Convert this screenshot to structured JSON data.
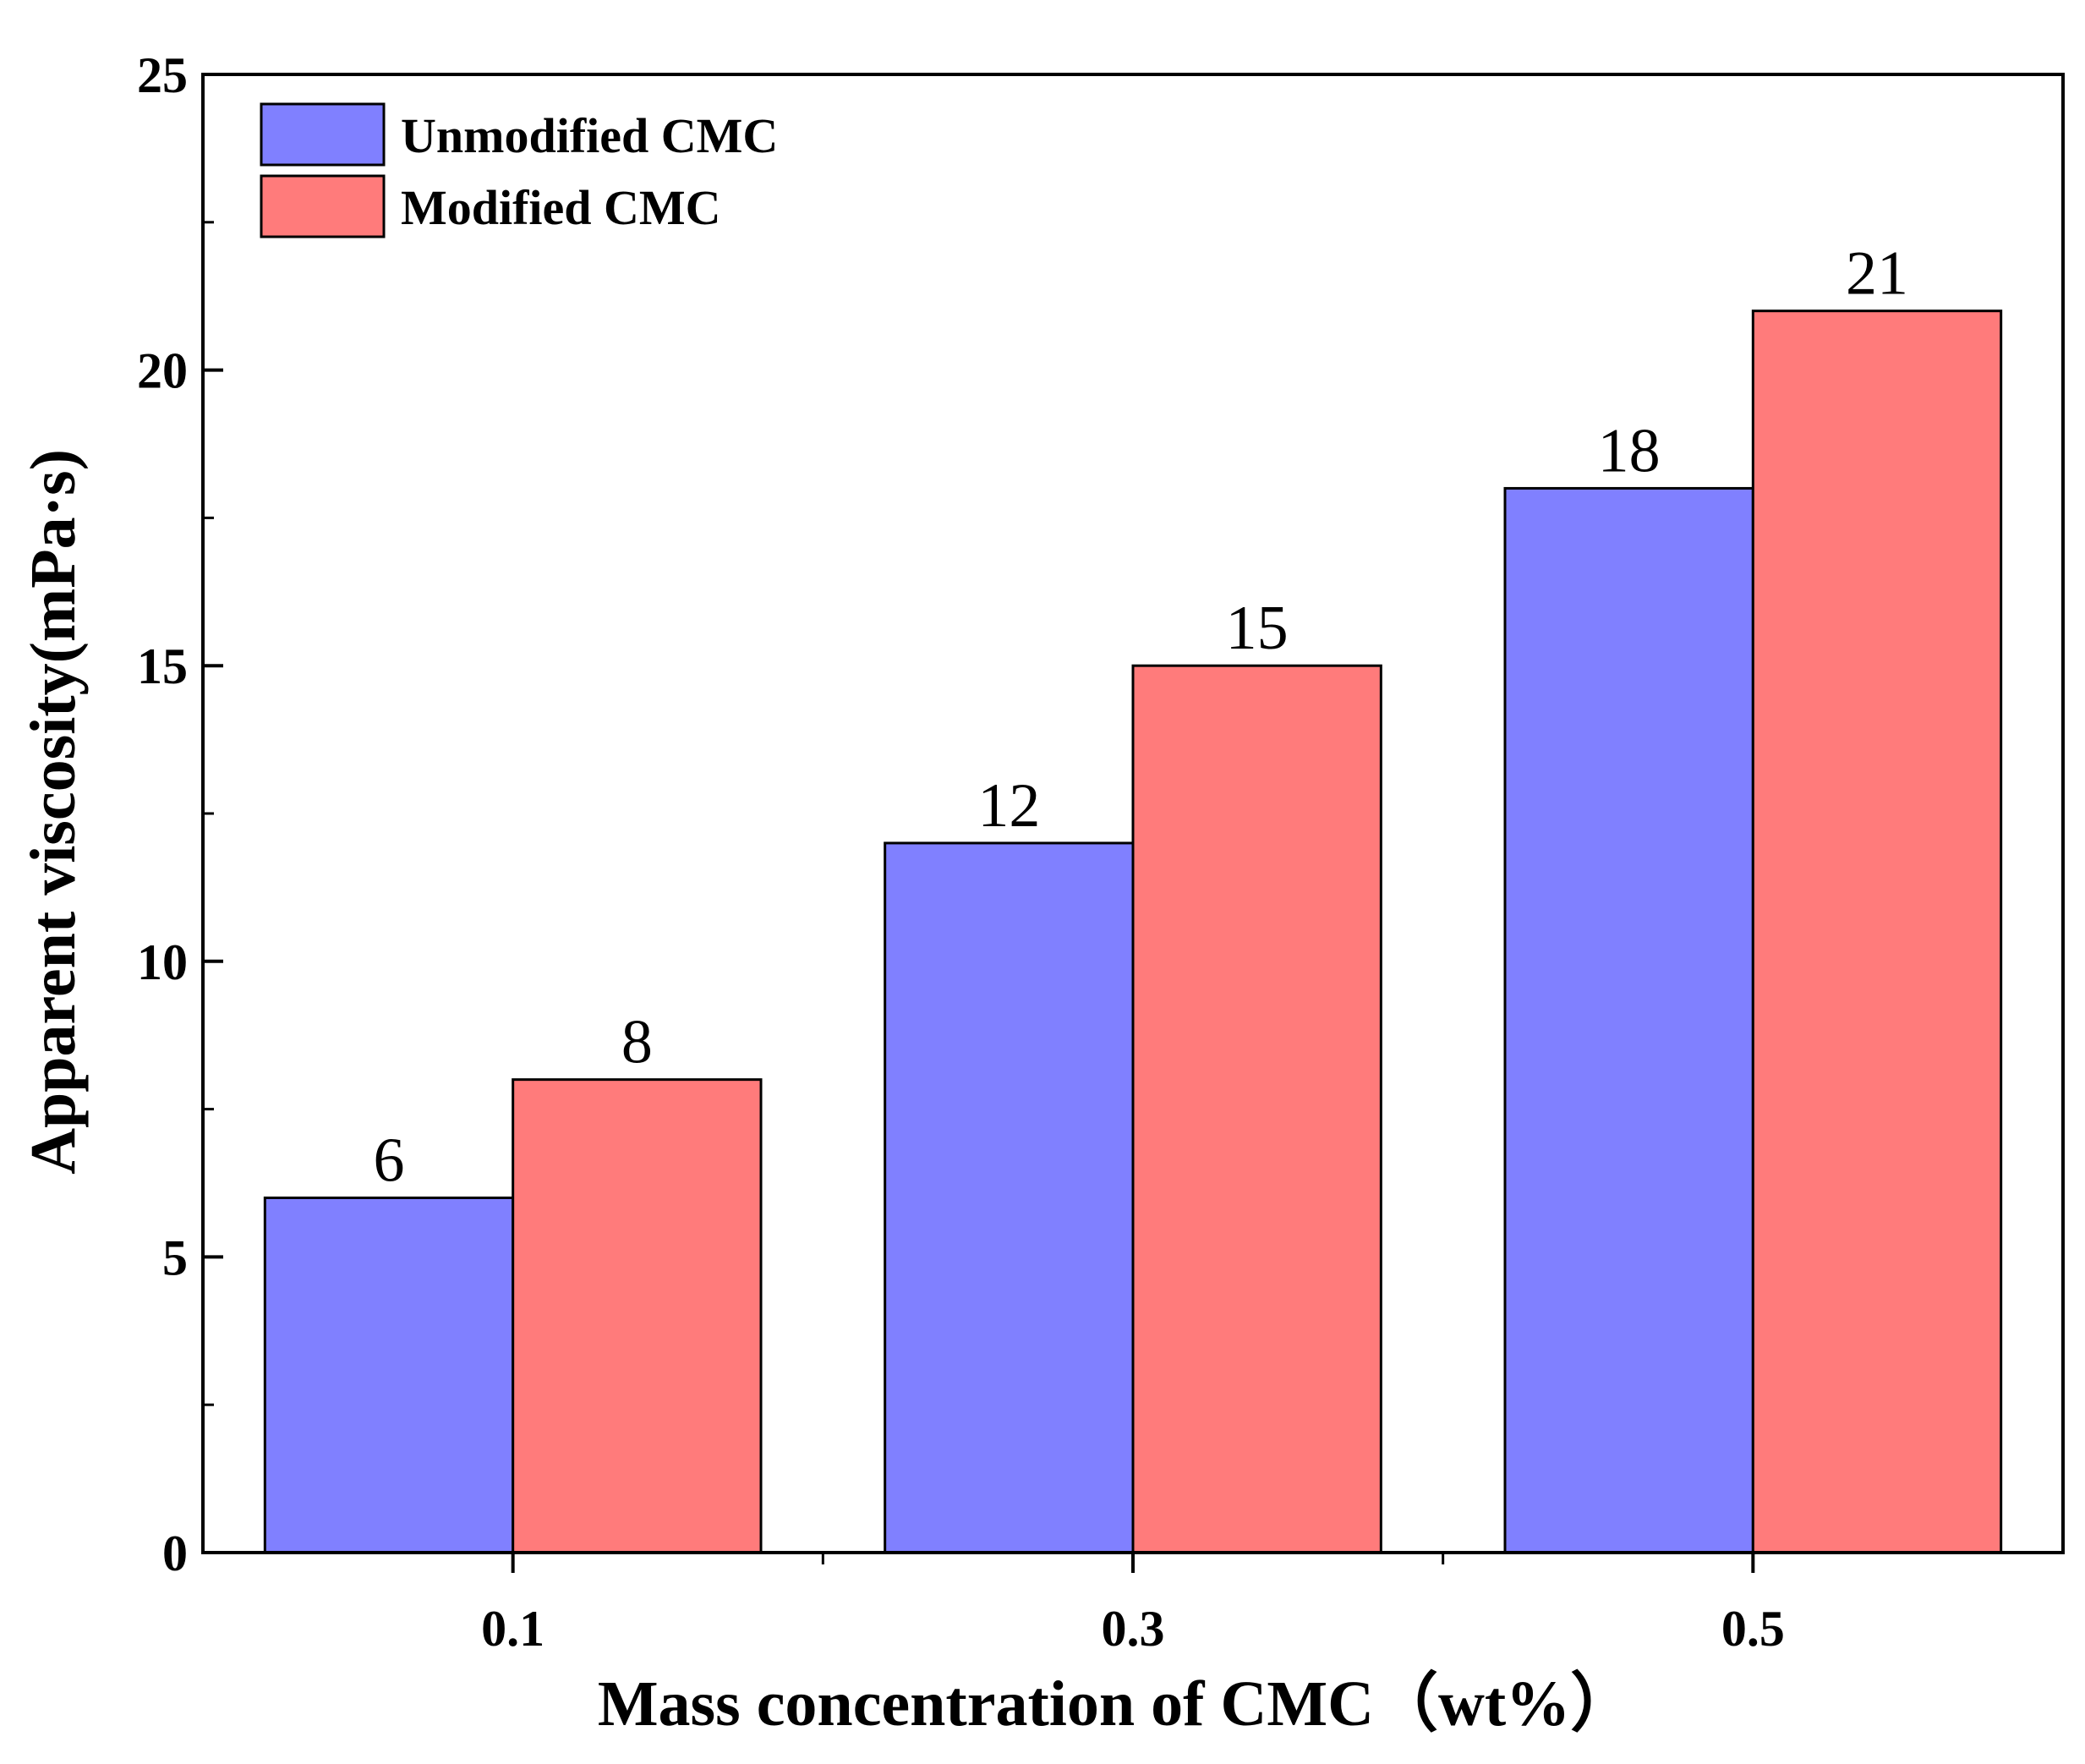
{
  "chart_data": {
    "type": "bar",
    "title": "",
    "xlabel": "Mass concentration of CMC（wt%）",
    "ylabel": "Apparent viscosity(mPa·s)",
    "categories": [
      "0.1",
      "0.3",
      "0.5"
    ],
    "series": [
      {
        "name": "Unmodified CMC",
        "color": "#8080ff",
        "values": [
          6,
          12,
          18
        ]
      },
      {
        "name": "Modified CMC",
        "color": "#ff7b7b",
        "values": [
          8,
          15,
          21
        ]
      }
    ],
    "xlim": [
      0,
      0.6
    ],
    "ylim": [
      0,
      25
    ],
    "yticks": [
      0,
      5,
      10,
      15,
      20,
      25
    ],
    "ytick_labels": [
      "0",
      "5",
      "10",
      "15",
      "20",
      "25"
    ],
    "minor_y_step": 2.5,
    "xtick_minor": [
      0.2,
      0.4
    ],
    "bar_width": 0.08,
    "grid": false,
    "legend_position": "top-left",
    "data_labels": true,
    "outline_color": "#000000"
  }
}
